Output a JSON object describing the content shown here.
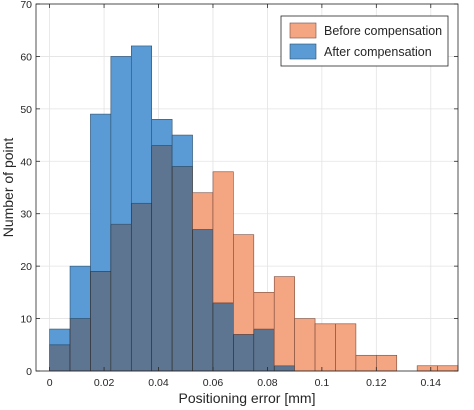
{
  "chart_data": {
    "type": "bar",
    "xlabel": "Positioning error [mm]",
    "ylabel": "Number of point",
    "xlim": [
      -0.005,
      0.15
    ],
    "ylim": [
      0,
      70
    ],
    "xticks": [
      0,
      0.02,
      0.04,
      0.06,
      0.08,
      0.1,
      0.12,
      0.14
    ],
    "xtick_labels": [
      "0",
      "0.02",
      "0.04",
      "0.06",
      "0.08",
      "0.1",
      "0.12",
      "0.14"
    ],
    "yticks": [
      0,
      10,
      20,
      30,
      40,
      50,
      60,
      70
    ],
    "ytick_labels": [
      "0",
      "10",
      "20",
      "30",
      "40",
      "50",
      "60",
      "70"
    ],
    "bin_edges": [
      0,
      0.0075,
      0.015,
      0.0225,
      0.03,
      0.0375,
      0.045,
      0.0525,
      0.06,
      0.0675,
      0.075,
      0.0825,
      0.09,
      0.0975,
      0.105,
      0.1125,
      0.12,
      0.1275,
      0.135,
      0.1425,
      0.15
    ],
    "grid": true,
    "legend_position": "top-right",
    "series": [
      {
        "name": "Before compensation",
        "color": "#f4a582",
        "edge_color": "#7a4a3a",
        "values": [
          5,
          10,
          19,
          28,
          32,
          43,
          39,
          34,
          38,
          26,
          15,
          18,
          10,
          9,
          9,
          3,
          3,
          0,
          1,
          1
        ]
      },
      {
        "name": "After compensation",
        "color": "#5b9bd5",
        "edge_color": "#2c4d6a",
        "values": [
          8,
          20,
          49,
          60,
          62,
          48,
          45,
          27,
          13,
          7,
          8,
          1,
          0,
          0,
          0,
          0,
          0,
          0,
          0,
          0
        ]
      }
    ],
    "overlap_color": "#5e7591"
  }
}
